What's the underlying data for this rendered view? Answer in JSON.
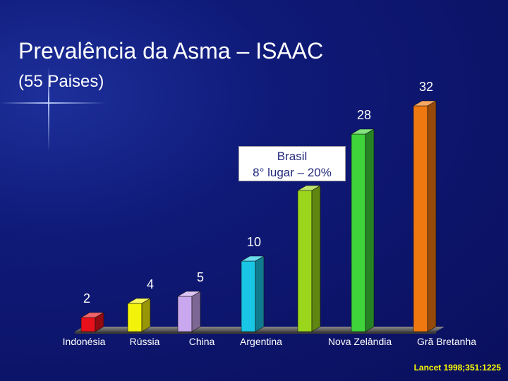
{
  "title": "Prevalência da Asma – ISAAC",
  "subtitle": "(55 Paises)",
  "callout": {
    "line1": "Brasil",
    "line2": "8° lugar – 20%"
  },
  "source": "Lancet 1998;351:1225",
  "chart_data": {
    "type": "bar",
    "categories": [
      "Indonésia",
      "Rússia",
      "China",
      "Argentina",
      "",
      "Nova Zelândia",
      "Grã Bretanha"
    ],
    "values": [
      2,
      4,
      5,
      10,
      20,
      28,
      32
    ],
    "data_labels": [
      "2",
      "4",
      "5",
      "10",
      "",
      "28",
      "32"
    ],
    "colors": [
      "#e8101a",
      "#f2f20a",
      "#c9a8f0",
      "#19c6e6",
      "#9bd61c",
      "#3ed43a",
      "#f07810"
    ],
    "ylim": [
      0,
      32
    ]
  }
}
